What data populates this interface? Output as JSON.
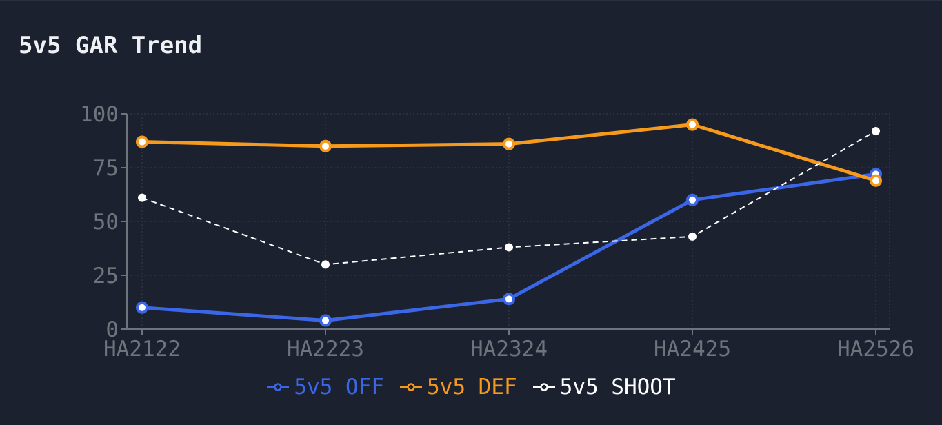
{
  "title": "5v5 GAR Trend",
  "chart_data": {
    "type": "line",
    "title": "5v5 GAR Trend",
    "xlabel": "",
    "ylabel": "",
    "categories": [
      "HA2122",
      "HA2223",
      "HA2324",
      "HA2425",
      "HA2526"
    ],
    "ylim": [
      0,
      100
    ],
    "yticks": [
      "0",
      "25",
      "50",
      "75",
      "100"
    ],
    "grid": true,
    "legend_position": "bottom",
    "series": [
      {
        "name": "5v5 OFF",
        "color": "#3b66e6",
        "style": "solid",
        "values": [
          10,
          4,
          14,
          60,
          72
        ]
      },
      {
        "name": "5v5 DEF",
        "color": "#f79a1c",
        "style": "solid",
        "values": [
          87,
          85,
          86,
          95,
          69
        ]
      },
      {
        "name": "5v5 SHOOT",
        "color": "#ffffff",
        "style": "dashed",
        "values": [
          61,
          30,
          38,
          43,
          92
        ]
      }
    ]
  }
}
